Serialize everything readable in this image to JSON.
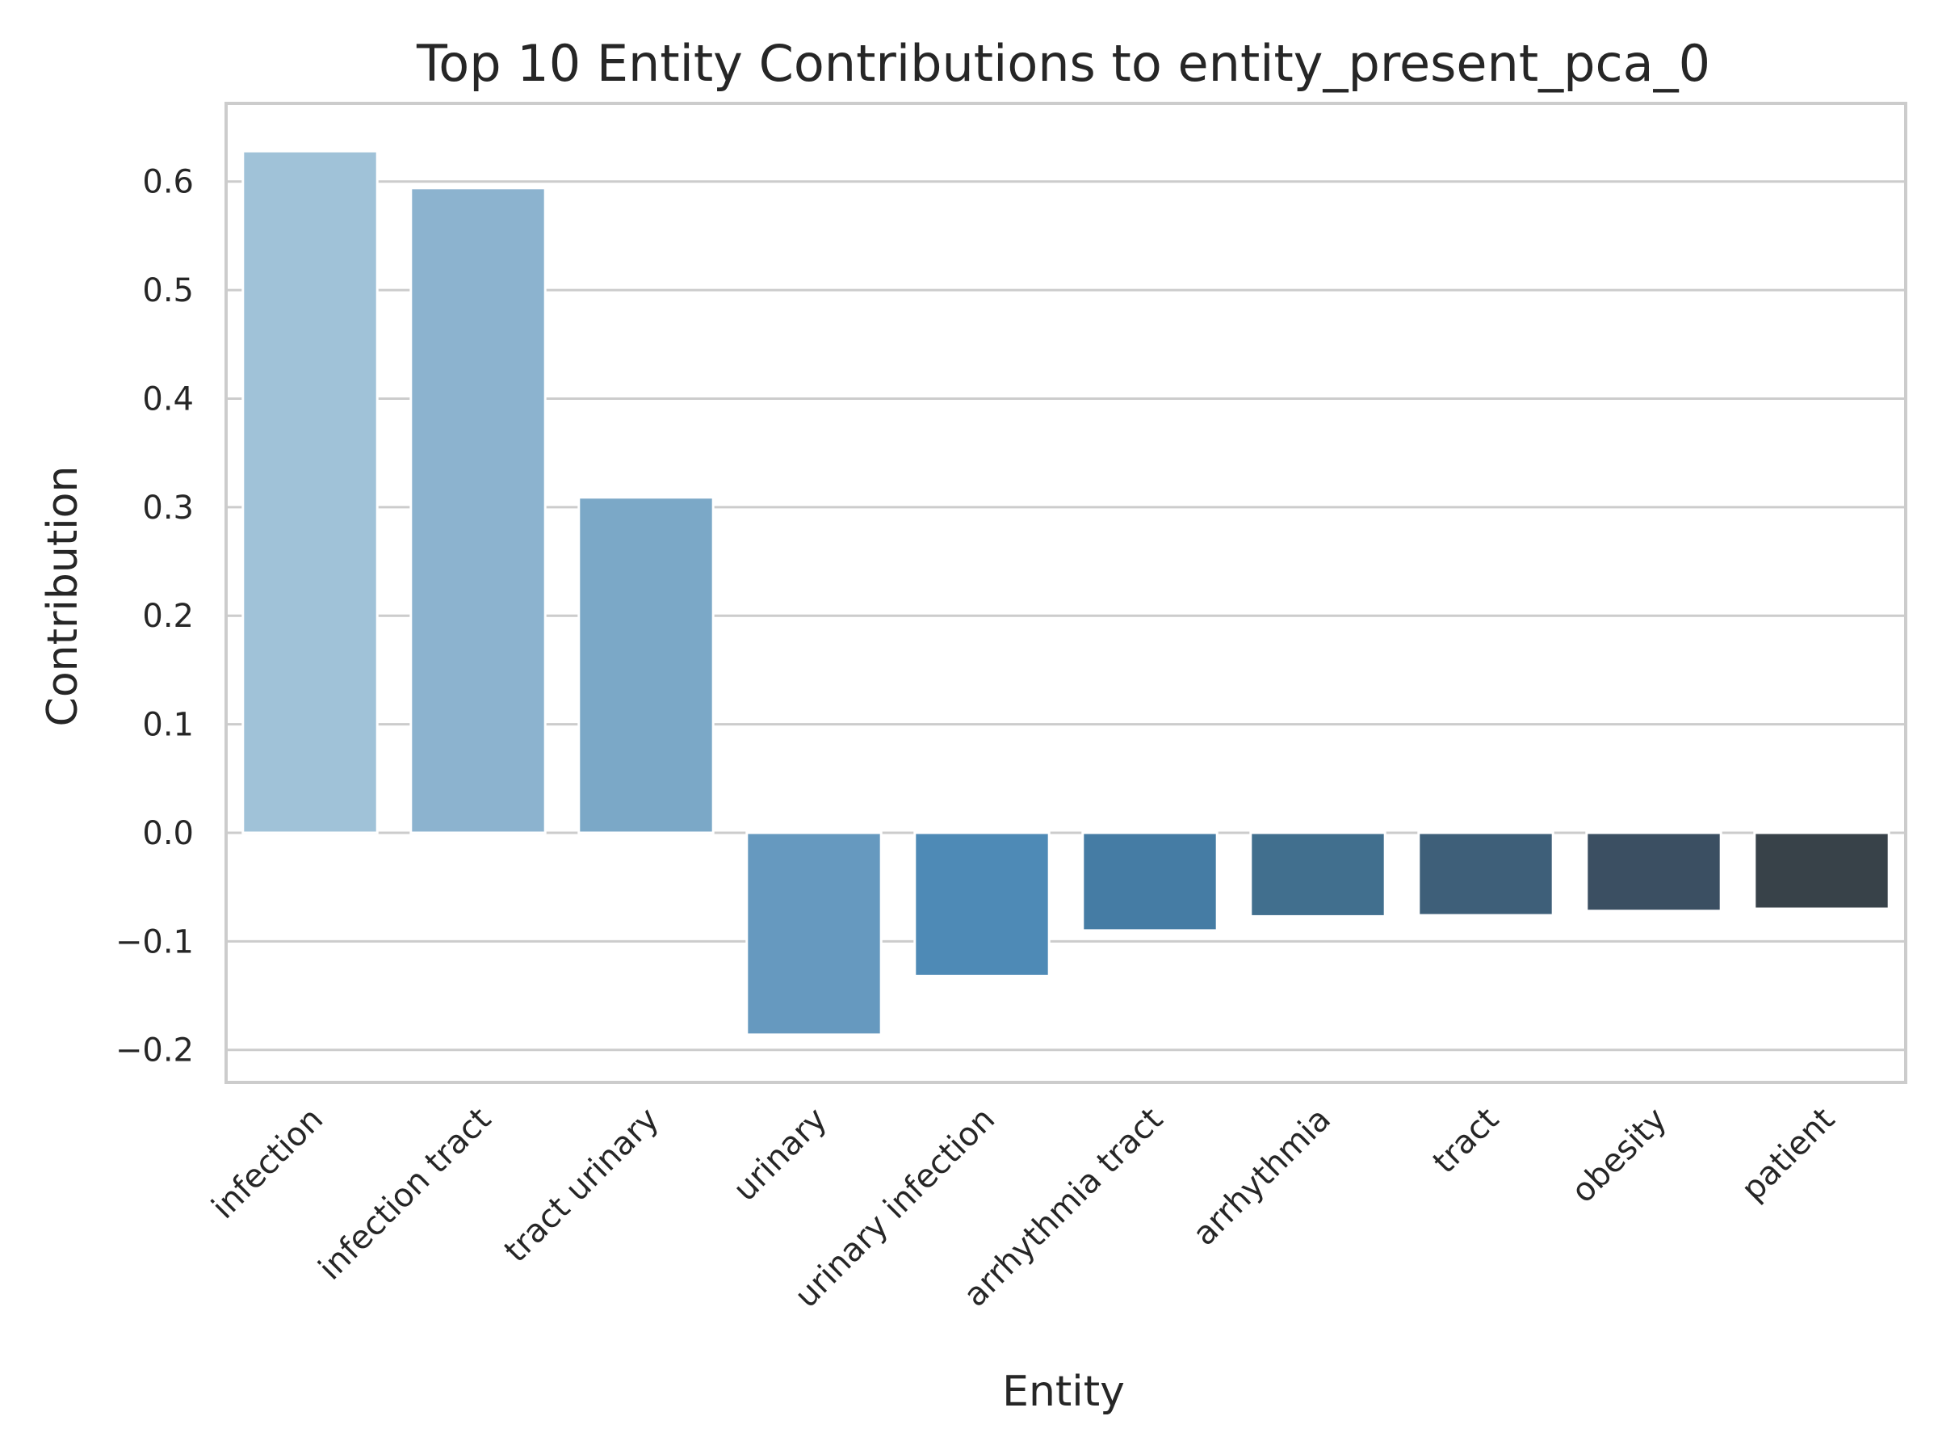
{
  "chart_data": {
    "type": "bar",
    "title": "Top 10 Entity Contributions to entity_present_pca_0",
    "xlabel": "Entity",
    "ylabel": "Contribution",
    "categories": [
      "infection",
      "infection tract",
      "tract urinary",
      "urinary",
      "urinary infection",
      "arrhythmia tract",
      "arrhythmia",
      "tract",
      "obesity",
      "patient"
    ],
    "values": [
      0.628,
      0.594,
      0.309,
      -0.186,
      -0.132,
      -0.09,
      -0.077,
      -0.076,
      -0.072,
      -0.07
    ],
    "colors": [
      "#a0c2d8",
      "#8cb3cf",
      "#7ba8c7",
      "#6699bf",
      "#4e8ab6",
      "#457ca4",
      "#416f8e",
      "#3e5f79",
      "#3b4f62",
      "#384249"
    ],
    "ylim": [
      -0.23,
      0.672
    ],
    "yticks": [
      -0.2,
      -0.1,
      0.0,
      0.1,
      0.2,
      0.3,
      0.4,
      0.5,
      0.6
    ],
    "ytick_labels": [
      "−0.2",
      "−0.1",
      "0.0",
      "0.1",
      "0.2",
      "0.3",
      "0.4",
      "0.5",
      "0.6"
    ],
    "grid": "y"
  }
}
